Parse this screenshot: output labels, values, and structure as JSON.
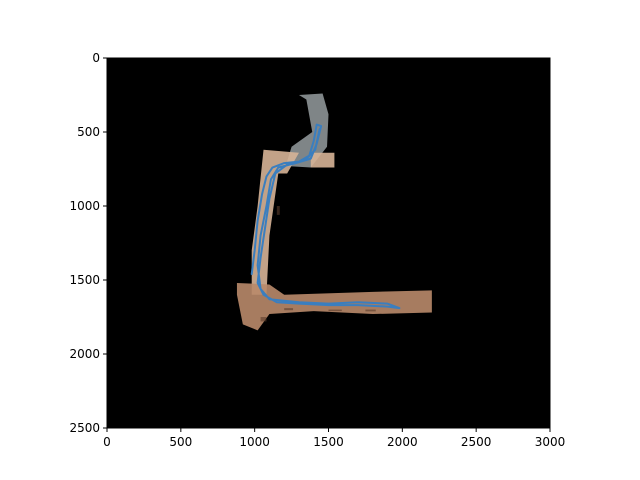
{
  "chart_data": {
    "type": "image_with_line",
    "title": "",
    "xlabel": "",
    "ylabel": "",
    "xlim": [
      0,
      3000
    ],
    "ylim": [
      2500,
      0
    ],
    "y_inverted": true,
    "xticks": [
      0,
      500,
      1000,
      1500,
      2000,
      2500,
      3000
    ],
    "yticks": [
      0,
      500,
      1000,
      1500,
      2000,
      2500
    ],
    "grid": false,
    "background_color": "#000000",
    "trajectory_color": "#3a7ebf",
    "map_colors": {
      "floor": "#b98a6a",
      "floor_light": "#d7b497",
      "wall": "#8d9496"
    },
    "map_regions": [
      {
        "name": "upper-corridor",
        "points": [
          [
            1300,
            250
          ],
          [
            1460,
            240
          ],
          [
            1500,
            380
          ],
          [
            1490,
            600
          ],
          [
            1380,
            740
          ],
          [
            1210,
            730
          ],
          [
            1250,
            600
          ],
          [
            1390,
            500
          ],
          [
            1350,
            280
          ]
        ]
      },
      {
        "name": "upper-extension",
        "points": [
          [
            1380,
            640
          ],
          [
            1540,
            640
          ],
          [
            1540,
            740
          ],
          [
            1380,
            740
          ]
        ]
      },
      {
        "name": "vertical-corridor",
        "points": [
          [
            1060,
            620
          ],
          [
            1300,
            640
          ],
          [
            1220,
            780
          ],
          [
            1160,
            780
          ],
          [
            1100,
            1200
          ],
          [
            1080,
            1600
          ],
          [
            980,
            1600
          ],
          [
            980,
            1300
          ],
          [
            1020,
            1000
          ],
          [
            1060,
            620
          ]
        ]
      },
      {
        "name": "bottom-corridor",
        "points": [
          [
            880,
            1520
          ],
          [
            1100,
            1530
          ],
          [
            1200,
            1600
          ],
          [
            1800,
            1580
          ],
          [
            2200,
            1570
          ],
          [
            2200,
            1720
          ],
          [
            1800,
            1730
          ],
          [
            1400,
            1710
          ],
          [
            1100,
            1730
          ],
          [
            1020,
            1840
          ],
          [
            920,
            1800
          ],
          [
            880,
            1600
          ]
        ]
      }
    ],
    "series": [
      {
        "values": [
          [
            980,
            1460
          ],
          [
            1000,
            1300
          ],
          [
            1020,
            1100
          ],
          [
            1050,
            920
          ],
          [
            1080,
            800
          ],
          [
            1120,
            740
          ],
          [
            1200,
            710
          ],
          [
            1300,
            700
          ],
          [
            1370,
            660
          ],
          [
            1400,
            560
          ],
          [
            1420,
            450
          ],
          [
            1450,
            460
          ],
          [
            1420,
            580
          ],
          [
            1380,
            680
          ],
          [
            1280,
            710
          ],
          [
            1160,
            740
          ],
          [
            1110,
            820
          ],
          [
            1080,
            1000
          ],
          [
            1040,
            1200
          ],
          [
            1020,
            1400
          ],
          [
            1040,
            1560
          ],
          [
            1100,
            1630
          ],
          [
            1300,
            1650
          ],
          [
            1500,
            1660
          ],
          [
            1700,
            1650
          ],
          [
            1900,
            1660
          ],
          [
            1980,
            1690
          ],
          [
            1900,
            1680
          ],
          [
            1700,
            1670
          ],
          [
            1500,
            1670
          ],
          [
            1300,
            1660
          ],
          [
            1150,
            1650
          ],
          [
            1060,
            1600
          ],
          [
            1020,
            1520
          ],
          [
            1040,
            1350
          ],
          [
            1070,
            1150
          ],
          [
            1100,
            950
          ],
          [
            1140,
            780
          ],
          [
            1220,
            720
          ],
          [
            1340,
            690
          ],
          [
            1410,
            620
          ],
          [
            1440,
            480
          ]
        ]
      }
    ]
  }
}
